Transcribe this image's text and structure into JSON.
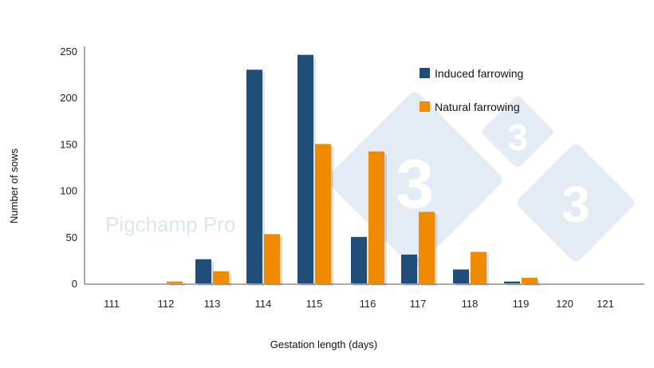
{
  "chart_data": {
    "type": "bar",
    "categories": [
      "111",
      "112",
      "113",
      "114",
      "115",
      "116",
      "117",
      "118",
      "119",
      "120",
      "121"
    ],
    "series": [
      {
        "name": "Induced farrowing",
        "color": "#1f4e79",
        "values": [
          0,
          0,
          26,
          230,
          246,
          50,
          31,
          15,
          2,
          0,
          0
        ]
      },
      {
        "name": "Natural farrowing",
        "color": "#f28a00",
        "values": [
          0,
          2,
          13,
          53,
          150,
          142,
          77,
          34,
          6,
          0,
          0
        ]
      }
    ],
    "ylabel": "Number of sows",
    "xlabel": "Gestation length (days)",
    "ylim": [
      0,
      250
    ],
    "yticks": [
      "0",
      "50",
      "100",
      "150",
      "200",
      "250"
    ],
    "legend_position": "top-right",
    "grid": false
  },
  "watermark": {
    "text": "Pigchamp Pro",
    "logo_numbers": [
      "3",
      "3",
      "3"
    ]
  }
}
